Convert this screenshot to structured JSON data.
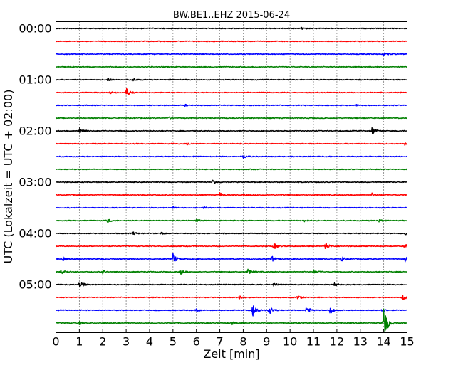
{
  "chart_data": {
    "type": "line",
    "title": "BW.BE1..EHZ 2015-06-24",
    "xlabel": "Zeit  [min]",
    "ylabel": "UTC (Lokalzeit = UTC + 02:00)",
    "xlim": [
      0,
      15
    ],
    "xticks": [
      "0",
      "1",
      "2",
      "3",
      "4",
      "5",
      "6",
      "7",
      "8",
      "9",
      "10",
      "11",
      "12",
      "13",
      "14",
      "15"
    ],
    "yticks": [
      "00:00",
      "01:00",
      "02:00",
      "03:00",
      "04:00",
      "05:00"
    ],
    "grid": "vertical dotted",
    "colors": [
      "#000000",
      "#ff0000",
      "#0000ff",
      "#008000"
    ],
    "series": [
      {
        "start": "00:00",
        "color": "#000000",
        "events": [
          {
            "t": 10.5,
            "a": 0.15
          }
        ]
      },
      {
        "start": "00:15",
        "color": "#ff0000",
        "events": []
      },
      {
        "start": "00:30",
        "color": "#0000ff",
        "events": [
          {
            "t": 14.0,
            "a": 0.25
          }
        ]
      },
      {
        "start": "00:45",
        "color": "#008000",
        "events": []
      },
      {
        "start": "01:00",
        "color": "#000000",
        "events": [
          {
            "t": 2.2,
            "a": 0.3
          },
          {
            "t": 3.3,
            "a": 0.2
          }
        ]
      },
      {
        "start": "01:15",
        "color": "#ff0000",
        "events": [
          {
            "t": 3.0,
            "a": 0.9
          },
          {
            "t": 2.3,
            "a": 0.2
          }
        ]
      },
      {
        "start": "01:30",
        "color": "#0000ff",
        "events": [
          {
            "t": 5.5,
            "a": 0.15
          },
          {
            "t": 12.8,
            "a": 0.15
          }
        ]
      },
      {
        "start": "01:45",
        "color": "#008000",
        "events": [
          {
            "t": 4.8,
            "a": 0.2
          }
        ]
      },
      {
        "start": "02:00",
        "color": "#000000",
        "events": [
          {
            "t": 1.0,
            "a": 0.85
          },
          {
            "t": 13.5,
            "a": 0.7
          }
        ]
      },
      {
        "start": "02:15",
        "color": "#ff0000",
        "events": [
          {
            "t": 5.6,
            "a": 0.3
          },
          {
            "t": 14.9,
            "a": 0.4
          }
        ]
      },
      {
        "start": "02:30",
        "color": "#0000ff",
        "events": [
          {
            "t": 8.0,
            "a": 0.35
          }
        ]
      },
      {
        "start": "02:45",
        "color": "#008000",
        "events": []
      },
      {
        "start": "03:00",
        "color": "#000000",
        "events": [
          {
            "t": 6.7,
            "a": 0.35
          }
        ]
      },
      {
        "start": "03:15",
        "color": "#ff0000",
        "events": [
          {
            "t": 7.0,
            "a": 0.45
          },
          {
            "t": 8.0,
            "a": 0.2
          },
          {
            "t": 13.5,
            "a": 0.3
          }
        ]
      },
      {
        "start": "03:30",
        "color": "#0000ff",
        "events": [
          {
            "t": 5.0,
            "a": 0.2
          },
          {
            "t": 6.3,
            "a": 0.15
          }
        ]
      },
      {
        "start": "03:45",
        "color": "#008000",
        "events": [
          {
            "t": 2.2,
            "a": 0.35
          },
          {
            "t": 6.0,
            "a": 0.25
          },
          {
            "t": 10.6,
            "a": 0.2
          },
          {
            "t": 13.8,
            "a": 0.25
          }
        ]
      },
      {
        "start": "04:00",
        "color": "#000000",
        "events": [
          {
            "t": 3.3,
            "a": 0.3
          },
          {
            "t": 4.5,
            "a": 0.2
          },
          {
            "t": 14.9,
            "a": 0.3
          }
        ]
      },
      {
        "start": "04:15",
        "color": "#ff0000",
        "events": [
          {
            "t": 9.3,
            "a": 0.6
          },
          {
            "t": 11.5,
            "a": 0.85
          },
          {
            "t": 14.9,
            "a": 0.6
          }
        ]
      },
      {
        "start": "04:30",
        "color": "#0000ff",
        "events": [
          {
            "t": 0.3,
            "a": 0.4
          },
          {
            "t": 5.0,
            "a": 1.0
          },
          {
            "t": 9.2,
            "a": 0.6
          },
          {
            "t": 12.2,
            "a": 0.5
          },
          {
            "t": 14.9,
            "a": 0.5
          }
        ]
      },
      {
        "start": "04:45",
        "color": "#008000",
        "events": [
          {
            "t": 0.2,
            "a": 0.4
          },
          {
            "t": 2.0,
            "a": 0.4
          },
          {
            "t": 5.3,
            "a": 0.5
          },
          {
            "t": 8.2,
            "a": 0.5
          },
          {
            "t": 11.0,
            "a": 0.35
          }
        ]
      },
      {
        "start": "05:00",
        "color": "#000000",
        "events": [
          {
            "t": 1.0,
            "a": 0.9
          },
          {
            "t": 9.3,
            "a": 0.35
          },
          {
            "t": 11.9,
            "a": 0.3
          }
        ]
      },
      {
        "start": "05:15",
        "color": "#ff0000",
        "events": [
          {
            "t": 7.8,
            "a": 0.5
          },
          {
            "t": 10.3,
            "a": 0.35
          },
          {
            "t": 14.8,
            "a": 0.45
          }
        ]
      },
      {
        "start": "05:30",
        "color": "#0000ff",
        "events": [
          {
            "t": 6.0,
            "a": 0.25
          },
          {
            "t": 8.4,
            "a": 1.3
          },
          {
            "t": 9.1,
            "a": 0.9
          },
          {
            "t": 10.7,
            "a": 0.9
          },
          {
            "t": 11.7,
            "a": 0.9
          },
          {
            "t": 13.9,
            "a": 0.3
          }
        ]
      },
      {
        "start": "05:45",
        "color": "#008000",
        "events": [
          {
            "t": 1.0,
            "a": 0.3
          },
          {
            "t": 7.5,
            "a": 0.3
          },
          {
            "t": 14.0,
            "a": 3.5
          }
        ]
      }
    ]
  }
}
